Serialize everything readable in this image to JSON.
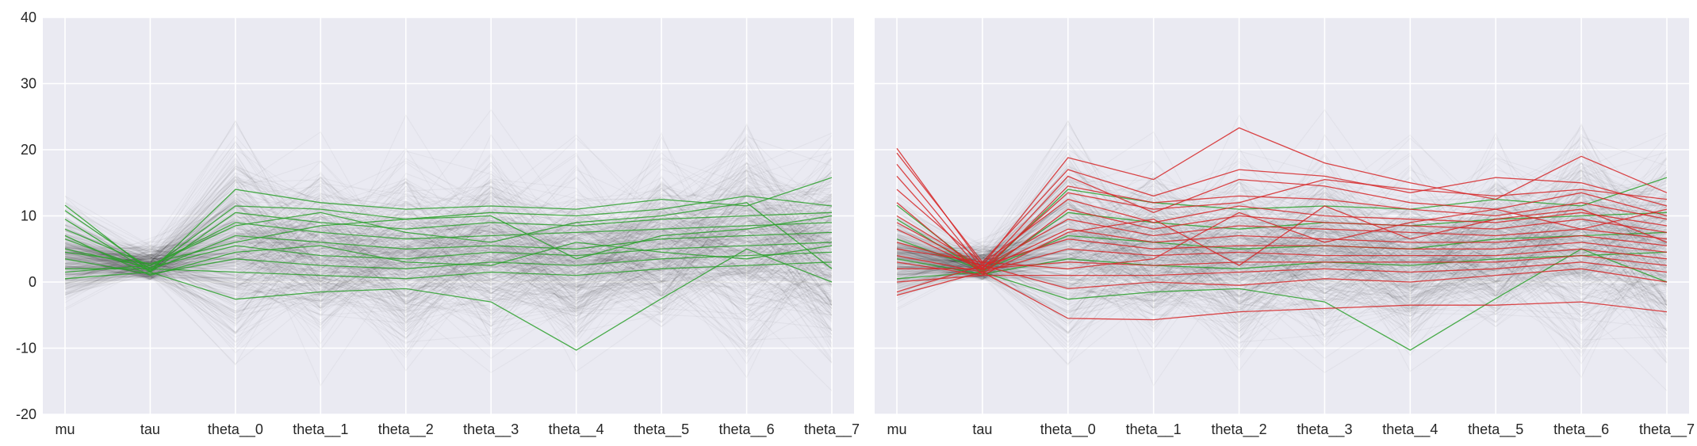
{
  "chart_data": [
    {
      "type": "line",
      "title": "",
      "xlabel": "",
      "ylabel": "",
      "categories": [
        "mu",
        "tau",
        "theta__0",
        "theta__1",
        "theta__2",
        "theta__3",
        "theta__4",
        "theta__5",
        "theta__6",
        "theta__7"
      ],
      "ylim": [
        -20,
        40
      ],
      "yticks": [
        40,
        30,
        20,
        10,
        0,
        -10,
        -20
      ],
      "grid": true,
      "legend": "none",
      "background_color": "#eaeaf2",
      "series": [
        {
          "color": "#2ca02c",
          "values": [
            11.6,
            1.6,
            14.0,
            12.0,
            11.0,
            11.5,
            11.0,
            12.5,
            11.5,
            15.8
          ]
        },
        {
          "color": "#2ca02c",
          "values": [
            10.8,
            2.0,
            11.5,
            11.0,
            9.5,
            10.5,
            10.0,
            11.0,
            13.0,
            11.5
          ]
        },
        {
          "color": "#2ca02c",
          "values": [
            9.5,
            1.5,
            10.5,
            9.0,
            8.0,
            9.0,
            8.5,
            9.5,
            10.0,
            10.5
          ]
        },
        {
          "color": "#2ca02c",
          "values": [
            8.0,
            2.5,
            9.0,
            7.5,
            6.5,
            7.0,
            7.5,
            8.0,
            8.5,
            9.0
          ]
        },
        {
          "color": "#2ca02c",
          "values": [
            6.5,
            1.8,
            7.0,
            6.0,
            5.0,
            5.5,
            5.0,
            6.5,
            7.0,
            7.5
          ]
        },
        {
          "color": "#2ca02c",
          "values": [
            5.0,
            2.2,
            5.5,
            4.0,
            3.5,
            4.5,
            4.0,
            5.0,
            5.5,
            6.0
          ]
        },
        {
          "color": "#2ca02c",
          "values": [
            3.5,
            1.2,
            3.5,
            2.5,
            2.0,
            3.0,
            2.5,
            3.5,
            4.0,
            4.5
          ]
        },
        {
          "color": "#2ca02c",
          "values": [
            2.0,
            2.0,
            1.5,
            1.0,
            0.5,
            1.5,
            1.0,
            2.0,
            2.5,
            3.0
          ]
        },
        {
          "color": "#2ca02c",
          "values": [
            0.5,
            1.5,
            -2.6,
            -1.5,
            -1.0,
            -3.0,
            -10.3,
            -2.5,
            5.0,
            0.0
          ]
        },
        {
          "color": "#2ca02c",
          "values": [
            4.5,
            2.8,
            6.0,
            8.5,
            9.5,
            10.0,
            3.5,
            7.0,
            8.0,
            10.0
          ]
        },
        {
          "color": "#2ca02c",
          "values": [
            7.0,
            1.0,
            4.5,
            5.5,
            3.0,
            2.5,
            6.0,
            4.5,
            3.5,
            5.5
          ]
        },
        {
          "color": "#2ca02c",
          "values": [
            1.5,
            2.5,
            8.5,
            10.5,
            7.5,
            6.0,
            9.0,
            10.0,
            12.0,
            2.0
          ]
        }
      ]
    },
    {
      "type": "line",
      "title": "",
      "xlabel": "",
      "ylabel": "",
      "categories": [
        "mu",
        "tau",
        "theta__0",
        "theta__1",
        "theta__2",
        "theta__3",
        "theta__4",
        "theta__5",
        "theta__6",
        "theta__7"
      ],
      "ylim": [
        -20,
        40
      ],
      "yticks": [
        40,
        30,
        20,
        10,
        0,
        -10,
        -20
      ],
      "grid": true,
      "legend": "none",
      "background_color": "#eaeaf2",
      "series": [
        {
          "color": "#2ca02c",
          "values": [
            11.6,
            1.6,
            14.0,
            12.0,
            11.0,
            11.5,
            11.0,
            12.5,
            11.5,
            15.8
          ]
        },
        {
          "color": "#2ca02c",
          "values": [
            9.5,
            1.5,
            10.5,
            9.0,
            8.0,
            9.0,
            8.5,
            9.5,
            10.0,
            10.5
          ]
        },
        {
          "color": "#2ca02c",
          "values": [
            6.5,
            1.8,
            7.0,
            6.0,
            5.0,
            5.5,
            5.0,
            6.5,
            7.0,
            7.5
          ]
        },
        {
          "color": "#2ca02c",
          "values": [
            0.5,
            1.5,
            -2.6,
            -1.5,
            -1.0,
            -3.0,
            -10.3,
            -2.5,
            5.0,
            0.0
          ]
        },
        {
          "color": "#2ca02c",
          "values": [
            3.5,
            1.2,
            3.5,
            2.5,
            2.0,
            3.0,
            2.5,
            3.5,
            4.0,
            4.5
          ]
        },
        {
          "color": "#d62728",
          "values": [
            20.2,
            2.5,
            18.8,
            15.5,
            23.3,
            18.0,
            15.0,
            12.5,
            19.0,
            13.5
          ]
        },
        {
          "color": "#d62728",
          "values": [
            19.5,
            3.0,
            17.0,
            13.0,
            17.0,
            16.0,
            13.5,
            15.8,
            15.0,
            11.5
          ]
        },
        {
          "color": "#d62728",
          "values": [
            17.8,
            2.0,
            16.0,
            10.5,
            15.5,
            14.5,
            12.0,
            11.0,
            13.5,
            10.0
          ]
        },
        {
          "color": "#d62728",
          "values": [
            16.0,
            1.5,
            14.5,
            12.0,
            13.0,
            12.5,
            11.0,
            10.0,
            12.0,
            9.5
          ]
        },
        {
          "color": "#d62728",
          "values": [
            14.0,
            2.8,
            12.5,
            9.0,
            11.5,
            10.0,
            9.5,
            9.0,
            10.5,
            8.5
          ]
        },
        {
          "color": "#d62728",
          "values": [
            12.0,
            1.2,
            11.0,
            8.0,
            10.0,
            9.0,
            8.5,
            8.0,
            9.5,
            7.5
          ]
        },
        {
          "color": "#d62728",
          "values": [
            10.0,
            2.2,
            9.5,
            7.0,
            8.5,
            8.0,
            7.5,
            7.0,
            8.0,
            6.5
          ]
        },
        {
          "color": "#d62728",
          "values": [
            8.0,
            1.8,
            8.0,
            6.0,
            7.0,
            6.5,
            6.0,
            6.0,
            7.0,
            5.5
          ]
        },
        {
          "color": "#d62728",
          "values": [
            6.0,
            2.5,
            6.5,
            5.0,
            5.5,
            5.5,
            5.0,
            5.0,
            6.0,
            4.5
          ]
        },
        {
          "color": "#d62728",
          "values": [
            4.0,
            1.5,
            5.0,
            4.0,
            4.5,
            4.0,
            4.0,
            4.0,
            5.0,
            3.5
          ]
        },
        {
          "color": "#d62728",
          "values": [
            2.0,
            2.0,
            3.0,
            2.5,
            3.0,
            3.0,
            3.0,
            3.0,
            4.0,
            2.5
          ]
        },
        {
          "color": "#d62728",
          "values": [
            0.0,
            1.0,
            1.0,
            1.0,
            1.5,
            2.0,
            1.5,
            2.0,
            3.0,
            1.5
          ]
        },
        {
          "color": "#d62728",
          "values": [
            -1.5,
            2.5,
            -1.0,
            0.0,
            -0.5,
            0.5,
            0.0,
            1.0,
            2.0,
            0.0
          ]
        },
        {
          "color": "#d62728",
          "values": [
            -2.0,
            1.5,
            -5.5,
            -5.7,
            -4.5,
            -4.0,
            -3.5,
            -3.5,
            -3.0,
            -4.5
          ]
        },
        {
          "color": "#d62728",
          "values": [
            9.0,
            2.0,
            13.5,
            11.0,
            12.0,
            15.5,
            14.0,
            13.0,
            14.0,
            12.5
          ]
        },
        {
          "color": "#d62728",
          "values": [
            5.0,
            3.0,
            2.0,
            3.5,
            10.5,
            6.0,
            9.0,
            11.0,
            8.0,
            11.0
          ]
        },
        {
          "color": "#d62728",
          "values": [
            3.0,
            1.0,
            7.5,
            9.5,
            2.5,
            11.5,
            6.5,
            9.5,
            11.0,
            6.0
          ]
        }
      ]
    }
  ]
}
